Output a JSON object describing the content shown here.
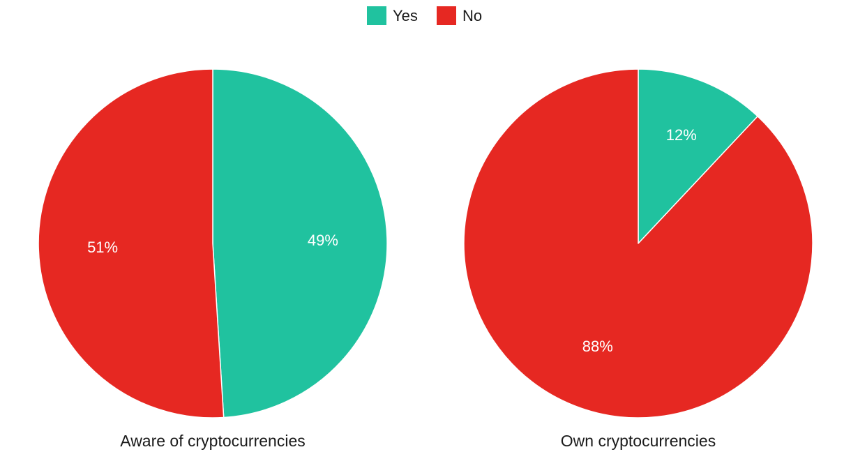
{
  "legend": {
    "position": "top-center",
    "items": [
      {
        "label": "Yes",
        "color": "#20c29f"
      },
      {
        "label": "No",
        "color": "#e62822"
      }
    ]
  },
  "chart_data": [
    {
      "type": "pie",
      "title": "Aware of cryptocurrencies",
      "categories": [
        "Yes",
        "No"
      ],
      "values": [
        49,
        51
      ],
      "value_labels": [
        "49%",
        "51%"
      ],
      "colors": [
        "#20c29f",
        "#e62822"
      ],
      "start_angle": "12 o'clock",
      "direction": "clockwise"
    },
    {
      "type": "pie",
      "title": "Own cryptocurrencies",
      "categories": [
        "Yes",
        "No"
      ],
      "values": [
        12,
        88
      ],
      "value_labels": [
        "12%",
        "88%"
      ],
      "colors": [
        "#20c29f",
        "#e62822"
      ],
      "start_angle": "12 o'clock",
      "direction": "clockwise"
    }
  ]
}
